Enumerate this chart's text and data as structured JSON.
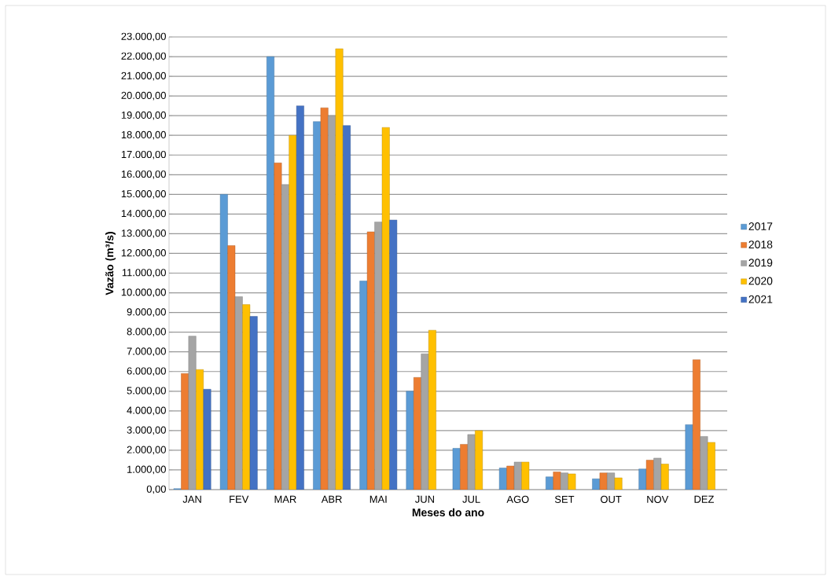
{
  "chart_data": {
    "type": "bar",
    "xlabel": "Meses do ano",
    "ylabel": "Vazão (m³/s)",
    "categories": [
      "JAN",
      "FEV",
      "MAR",
      "ABR",
      "MAI",
      "JUN",
      "JUL",
      "AGO",
      "SET",
      "OUT",
      "NOV",
      "DEZ"
    ],
    "series": [
      {
        "name": "2017",
        "color": "#5b9bd5",
        "values": [
          50,
          15000,
          22000,
          18700,
          10600,
          5000,
          2100,
          1100,
          650,
          550,
          1050,
          3300
        ]
      },
      {
        "name": "2018",
        "color": "#ed7d31",
        "values": [
          5900,
          12400,
          16600,
          19400,
          13100,
          5700,
          2300,
          1200,
          900,
          850,
          1500,
          6600
        ]
      },
      {
        "name": "2019",
        "color": "#a5a5a5",
        "values": [
          7800,
          9800,
          15500,
          19000,
          13600,
          6900,
          2800,
          1400,
          850,
          850,
          1600,
          2700
        ]
      },
      {
        "name": "2020",
        "color": "#ffc000",
        "values": [
          6100,
          9400,
          18000,
          22400,
          18400,
          8100,
          3000,
          1400,
          800,
          600,
          1300,
          2400
        ]
      },
      {
        "name": "2021",
        "color": "#4472c4",
        "values": [
          5100,
          8800,
          19500,
          18500,
          13700,
          null,
          null,
          null,
          null,
          null,
          null,
          null
        ]
      }
    ],
    "ylim": [
      0,
      23000
    ],
    "yticks": [
      {
        "value": 0,
        "label": "0,00"
      },
      {
        "value": 1000,
        "label": "1.000,00"
      },
      {
        "value": 2000,
        "label": "2.000,00"
      },
      {
        "value": 3000,
        "label": "3.000,00"
      },
      {
        "value": 4000,
        "label": "4.000,00"
      },
      {
        "value": 5000,
        "label": "5.000,00"
      },
      {
        "value": 6000,
        "label": "6.000,00"
      },
      {
        "value": 7000,
        "label": "7.000,00"
      },
      {
        "value": 8000,
        "label": "8.000,00"
      },
      {
        "value": 9000,
        "label": "9.000,00"
      },
      {
        "value": 10000,
        "label": "10.000,00"
      },
      {
        "value": 11000,
        "label": "11.000,00"
      },
      {
        "value": 12000,
        "label": "12.000,00"
      },
      {
        "value": 13000,
        "label": "13.000,00"
      },
      {
        "value": 14000,
        "label": "14.000,00"
      },
      {
        "value": 15000,
        "label": "15.000,00"
      },
      {
        "value": 16000,
        "label": "16.000,00"
      },
      {
        "value": 17000,
        "label": "17.000,00"
      },
      {
        "value": 18000,
        "label": "18.000,00"
      },
      {
        "value": 19000,
        "label": "19.000,00"
      },
      {
        "value": 20000,
        "label": "20.000,00"
      },
      {
        "value": 21000,
        "label": "21.000,00"
      },
      {
        "value": 22000,
        "label": "22.000,00"
      },
      {
        "value": 23000,
        "label": "23.000,00"
      }
    ],
    "grid": "y",
    "legend": "right"
  }
}
